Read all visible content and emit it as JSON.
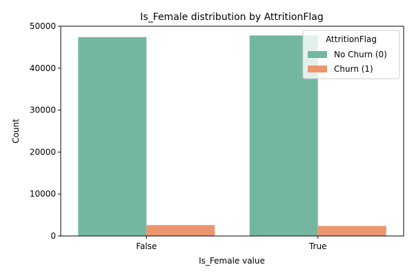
{
  "chart_data": {
    "type": "bar",
    "title": "Is_Female distribution by AttritionFlag",
    "xlabel": "Is_Female value",
    "ylabel": "Count",
    "categories": [
      "False",
      "True"
    ],
    "ylim": [
      0,
      50000
    ],
    "yticks": [
      "0",
      "10000",
      "20000",
      "30000",
      "40000",
      "50000"
    ],
    "grid": false,
    "legend": {
      "title": "AttritionFlag",
      "position": "top-right"
    },
    "series": [
      {
        "name": "No Churn (0)",
        "values": [
          47400,
          47800
        ],
        "color": "#73b7a0"
      },
      {
        "name": "Churn (1)",
        "values": [
          2600,
          2400
        ],
        "color": "#ec9670"
      }
    ]
  }
}
